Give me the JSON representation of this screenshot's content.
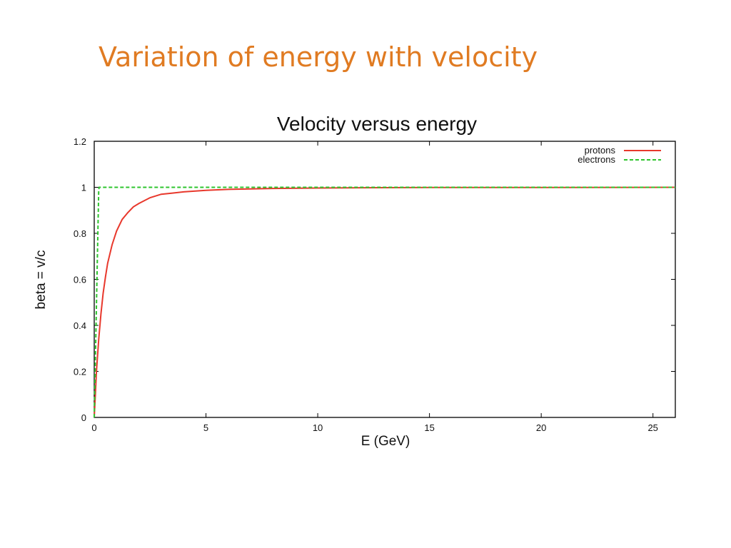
{
  "slide": {
    "title": "Variation of energy with velocity"
  },
  "chart_data": {
    "type": "line",
    "title": "Velocity versus energy",
    "xlabel": "E (GeV)",
    "ylabel": "beta = v/c",
    "xlim": [
      0,
      26
    ],
    "ylim": [
      0,
      1.2
    ],
    "xticks": [
      0,
      5,
      10,
      15,
      20,
      25
    ],
    "yticks": [
      0,
      0.2,
      0.4,
      0.6,
      0.8,
      1,
      1.2
    ],
    "ytick_labels": [
      "0",
      "0.2",
      "0.4",
      "0.6",
      "0.8",
      "1",
      "1.2"
    ],
    "grid": false,
    "legend_position": "top-right",
    "series": [
      {
        "name": "protons",
        "color": "#E8382C",
        "dash": "solid",
        "x": [
          0,
          0.05,
          0.1,
          0.2,
          0.3,
          0.4,
          0.5,
          0.6,
          0.8,
          1.0,
          1.25,
          1.5,
          1.75,
          2.0,
          2.5,
          3.0,
          3.5,
          4.0,
          5.0,
          6.0,
          7.0,
          8.0,
          10.0,
          12.0,
          15.0,
          20.0,
          26.0
        ],
        "y": [
          0.0,
          0.1,
          0.2,
          0.34,
          0.45,
          0.54,
          0.61,
          0.67,
          0.75,
          0.81,
          0.86,
          0.89,
          0.915,
          0.93,
          0.955,
          0.97,
          0.975,
          0.98,
          0.987,
          0.991,
          0.993,
          0.995,
          0.997,
          0.998,
          0.999,
          0.999,
          1.0
        ]
      },
      {
        "name": "electrons",
        "color": "#2EC42E",
        "dash": "dashed",
        "x": [
          0,
          0.2,
          0.22,
          26.0
        ],
        "y": [
          0,
          0.99,
          1.0,
          1.0
        ]
      }
    ]
  }
}
